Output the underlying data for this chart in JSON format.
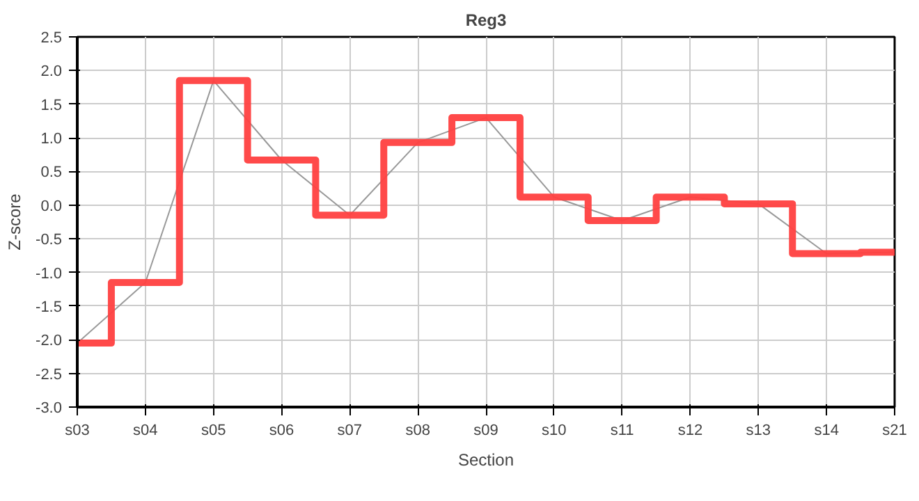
{
  "chart_data": {
    "type": "step",
    "title": "Reg3",
    "xlabel": "Section",
    "ylabel": "Z-score",
    "categories": [
      "s03",
      "s04",
      "s05",
      "s06",
      "s07",
      "s08",
      "s09",
      "s10",
      "s11",
      "s12",
      "s13",
      "s14",
      "s21"
    ],
    "series": [
      {
        "type": "line",
        "color": "#999999",
        "values": [
          -2.05,
          -1.15,
          1.85,
          0.67,
          -0.15,
          0.93,
          1.3,
          0.12,
          -0.23,
          0.12,
          0.02,
          -0.72,
          -0.7
        ]
      },
      {
        "color": "#ff4040",
        "values": [
          -2.05,
          -1.15,
          1.85,
          0.67,
          -0.15,
          0.93,
          1.3,
          0.12,
          -0.23,
          0.12,
          0.02,
          -0.72,
          -0.7
        ]
      }
    ],
    "ylim": [
      -3,
      2.5
    ],
    "yticks": [
      {
        "value": -3,
        "label": "-3.0"
      },
      {
        "value": -2.5,
        "label": "-2.5"
      },
      {
        "value": -2,
        "label": "-2.0"
      },
      {
        "value": -1.5,
        "label": "-1.5"
      },
      {
        "value": -1,
        "label": "-1.0"
      },
      {
        "value": -0.5,
        "label": "-0.5"
      },
      {
        "value": 0,
        "label": "0.0"
      },
      {
        "value": 0.5,
        "label": "0.5"
      },
      {
        "value": 1,
        "label": "1.0"
      },
      {
        "value": 1.5,
        "label": "1.5"
      },
      {
        "value": 2,
        "label": "2.0"
      },
      {
        "value": 2.5,
        "label": "2.5"
      }
    ],
    "grid": true
  }
}
